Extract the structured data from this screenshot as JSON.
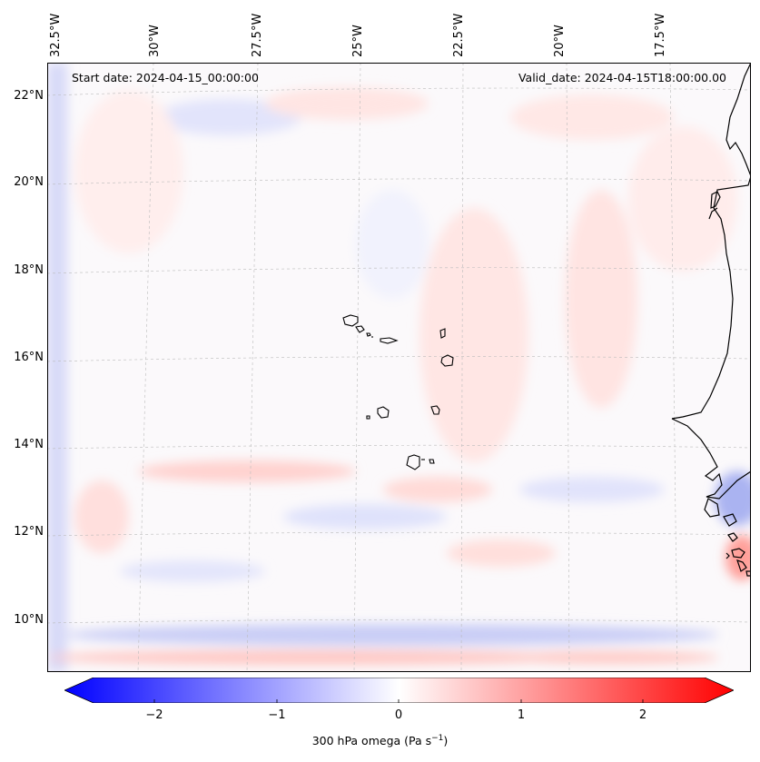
{
  "map": {
    "header": {
      "start_date": "Start date: 2024-04-15_00:00:00",
      "valid_date": "Valid_date: 2024-04-15T18:00:00.00"
    },
    "longitude_labels": [
      "32.5°W",
      "30°W",
      "27.5°W",
      "25°W",
      "22.5°W",
      "20°W",
      "17.5°W"
    ],
    "latitude_labels": [
      "22°N",
      "20°N",
      "18°N",
      "16°N",
      "14°N",
      "12°N",
      "10°N"
    ],
    "colorbar": {
      "ticks": [
        "−2",
        "−1",
        "0",
        "1",
        "2"
      ],
      "label_prefix": "300 hPa omega (Pa s",
      "label_exponent": "−1",
      "label_suffix": ")",
      "range": [
        -2.6,
        2.6
      ],
      "colormap": "bwr",
      "colors": {
        "low": "#0000ff",
        "mid": "#ffffff",
        "high": "#ff0000"
      }
    },
    "extent": {
      "lon": [
        -33,
        -15
      ],
      "lat": [
        8.8,
        22.8
      ]
    }
  }
}
